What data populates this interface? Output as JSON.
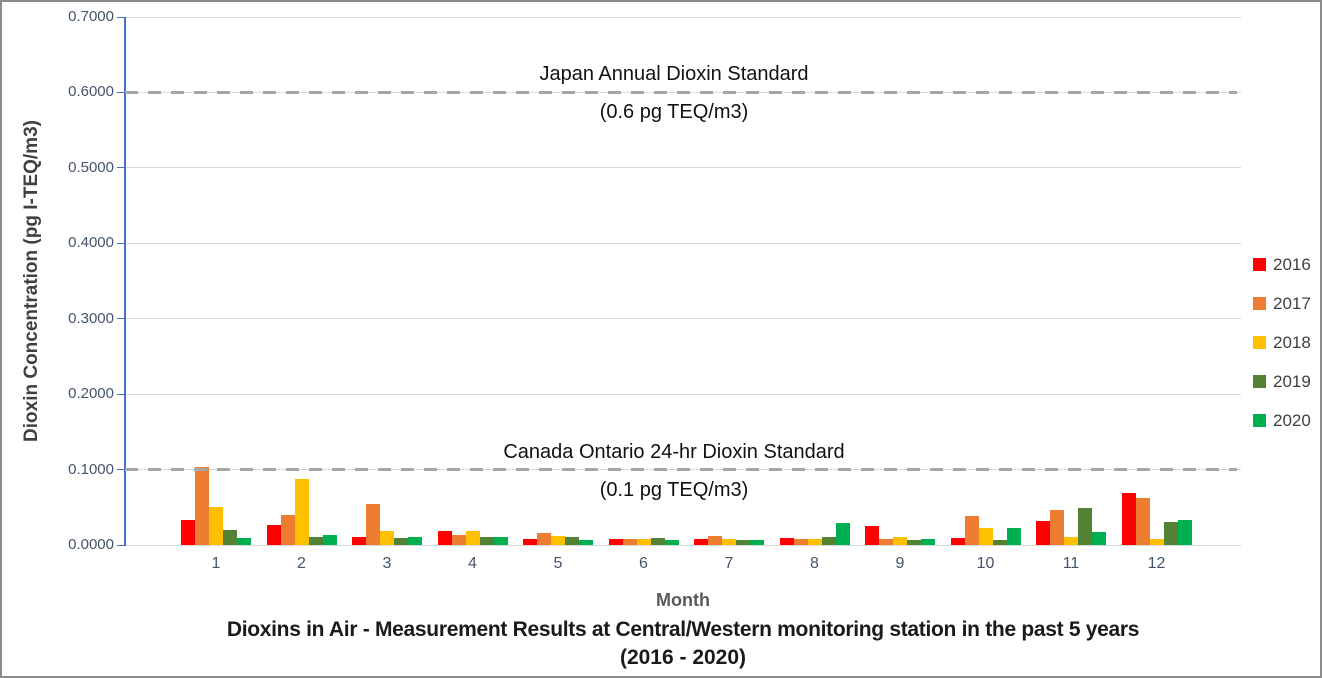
{
  "chart_data": {
    "type": "bar",
    "title": "Dioxins in Air - Measurement Results at Central/Western monitoring station in the past 5 years",
    "subtitle": "(2016 - 2020)",
    "xlabel": "Month",
    "ylabel": "Dioxin Concentration (pg I-TEQ/m3)",
    "categories": [
      "1",
      "2",
      "3",
      "4",
      "5",
      "6",
      "7",
      "8",
      "9",
      "10",
      "11",
      "12"
    ],
    "series": [
      {
        "name": "2016",
        "color": "#ff0000",
        "values": [
          0.033,
          0.027,
          0.011,
          0.018,
          0.008,
          0.008,
          0.008,
          0.009,
          0.025,
          0.009,
          0.032,
          0.069
        ]
      },
      {
        "name": "2017",
        "color": "#ed7d31",
        "values": [
          0.103,
          0.04,
          0.055,
          0.013,
          0.016,
          0.008,
          0.012,
          0.008,
          0.008,
          0.038,
          0.047,
          0.062
        ]
      },
      {
        "name": "2018",
        "color": "#ffc000",
        "values": [
          0.051,
          0.087,
          0.019,
          0.019,
          0.012,
          0.008,
          0.008,
          0.008,
          0.011,
          0.022,
          0.011,
          0.008
        ]
      },
      {
        "name": "2019",
        "color": "#548235",
        "values": [
          0.02,
          0.01,
          0.009,
          0.01,
          0.01,
          0.009,
          0.006,
          0.01,
          0.007,
          0.007,
          0.049,
          0.031
        ]
      },
      {
        "name": "2020",
        "color": "#00b050",
        "values": [
          0.009,
          0.013,
          0.01,
          0.011,
          0.007,
          0.007,
          0.007,
          0.029,
          0.008,
          0.023,
          0.017,
          0.033
        ]
      }
    ],
    "ylim": [
      0,
      0.7
    ],
    "ytick_labels": [
      "0.0000",
      "0.1000",
      "0.2000",
      "0.3000",
      "0.4000",
      "0.5000",
      "0.6000",
      "0.7000"
    ],
    "grid": true,
    "legend_position": "right",
    "reference_lines": [
      {
        "value": 0.6,
        "label_top": "Japan Annual Dioxin Standard",
        "label_bottom": "(0.6 pg TEQ/m3)",
        "color": "#a6a6a6"
      },
      {
        "value": 0.1,
        "label_top": "Canada Ontario 24-hr Dioxin Standard",
        "label_bottom": "(0.1 pg TEQ/m3)",
        "color": "#a6a6a6"
      }
    ]
  }
}
